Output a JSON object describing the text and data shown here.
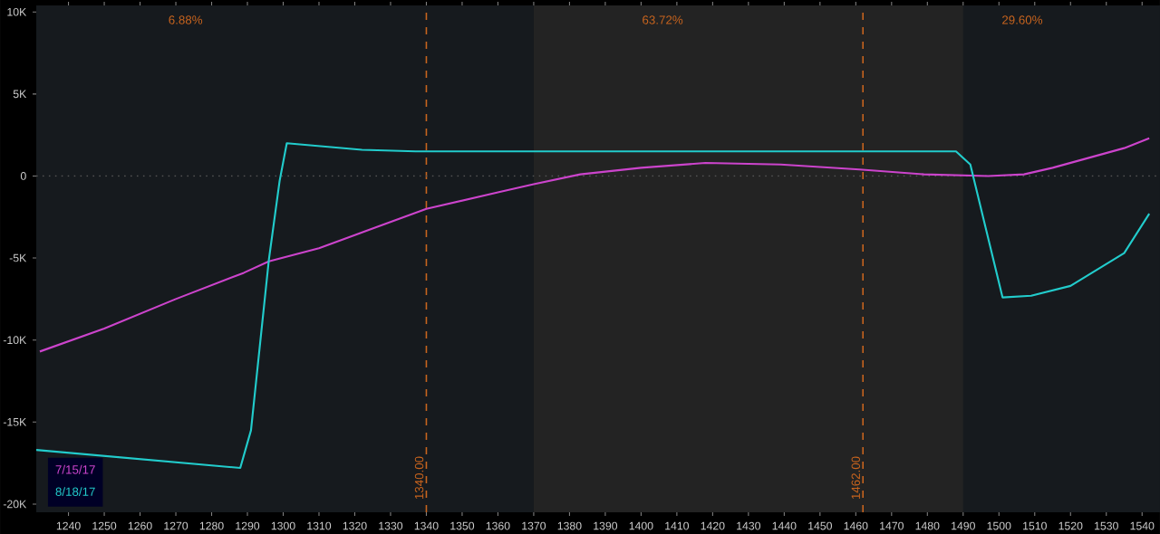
{
  "chart_data": {
    "type": "line",
    "xlim": [
      1231,
      1545
    ],
    "ylim": [
      -20500,
      10400
    ],
    "xticks": [
      1240,
      1250,
      1260,
      1270,
      1280,
      1290,
      1300,
      1310,
      1320,
      1330,
      1340,
      1350,
      1360,
      1370,
      1380,
      1390,
      1400,
      1410,
      1420,
      1430,
      1440,
      1450,
      1460,
      1470,
      1480,
      1490,
      1500,
      1510,
      1520,
      1530,
      1540
    ],
    "yticks": [
      {
        "value": 10000,
        "label": "10K"
      },
      {
        "value": 5000,
        "label": "5K"
      },
      {
        "value": 0,
        "label": "0"
      },
      {
        "value": -5000,
        "label": "-5K"
      },
      {
        "value": -10000,
        "label": "-10K"
      },
      {
        "value": -15000,
        "label": "-15K"
      },
      {
        "value": -20000,
        "label": "-20K"
      }
    ],
    "bands": [
      {
        "axis": "x",
        "from": 1370,
        "to": 1490,
        "color": "#232323"
      }
    ],
    "annotations": [
      "6.88%",
      "63.72%",
      "29.60%"
    ],
    "ref_lines": [
      {
        "axis": "x",
        "value": 1340,
        "label": "1340.00",
        "color": "#c8641e",
        "line_style": "dashed"
      },
      {
        "axis": "x",
        "value": 1462,
        "label": "1462.00",
        "color": "#c8641e",
        "line_style": "dashed"
      },
      {
        "axis": "y",
        "value": 0,
        "color": "#555555",
        "line_style": "dotted"
      }
    ],
    "legend": "bottom left",
    "series": [
      {
        "name": "7/15/17",
        "color": "#cc44cc",
        "x": [
          1232,
          1250,
          1270,
          1289,
          1296,
          1310,
          1320,
          1340,
          1360,
          1370,
          1383,
          1400,
          1418,
          1439,
          1461,
          1479,
          1497,
          1507,
          1515,
          1525,
          1535,
          1542
        ],
        "values": [
          -10700,
          -9300,
          -7500,
          -5900,
          -5200,
          -4400,
          -3600,
          -2000,
          -1000,
          -500,
          100,
          500,
          800,
          700,
          400,
          100,
          0,
          100,
          500,
          1100,
          1700,
          2300
        ]
      },
      {
        "name": "8/18/17",
        "color": "#22cccc",
        "x": [
          1231,
          1288,
          1291,
          1296,
          1299,
          1301,
          1322,
          1337,
          1488,
          1492,
          1501,
          1509,
          1520,
          1535,
          1542
        ],
        "values": [
          -16700,
          -17800,
          -15500,
          -5100,
          -300,
          2000,
          1600,
          1500,
          1500,
          700,
          -7400,
          -7300,
          -6700,
          -4700,
          -2300
        ]
      }
    ]
  }
}
